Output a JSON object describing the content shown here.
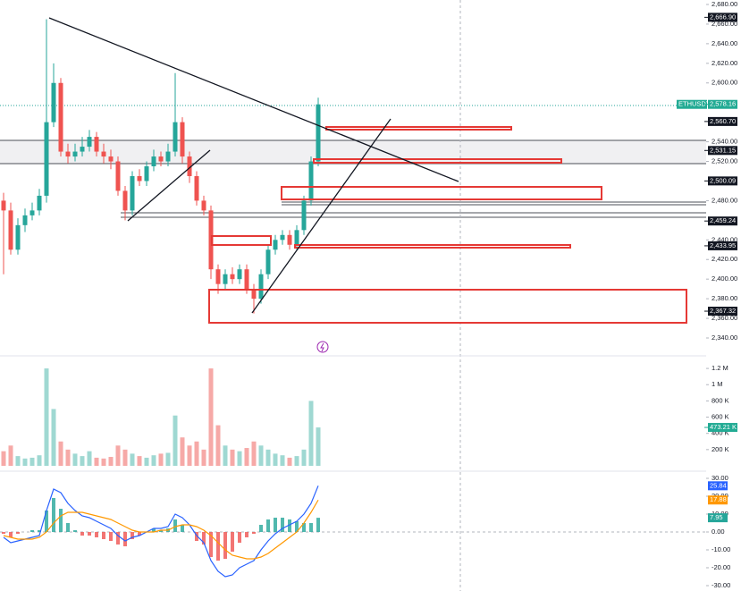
{
  "chart_data": [
    {
      "type": "candlestick",
      "symbol": "ETHUSDT.P",
      "up_color": "#26a69a",
      "down_color": "#ef5350",
      "open": [
        2480,
        2470,
        2430,
        2455,
        2465,
        2470,
        2485,
        2560,
        2600,
        2530,
        2525,
        2530,
        2535,
        2545,
        2530,
        2525,
        2520,
        2490,
        2470,
        2505,
        2500,
        2515,
        2525,
        2520,
        2530,
        2560,
        2525,
        2505,
        2480,
        2470,
        2410,
        2395,
        2405,
        2400,
        2410,
        2390,
        2380,
        2405,
        2430,
        2440,
        2445,
        2435,
        2450,
        2480,
        2520
      ],
      "high": [
        2488,
        2478,
        2462,
        2472,
        2478,
        2492,
        2665,
        2620,
        2605,
        2538,
        2538,
        2545,
        2552,
        2550,
        2538,
        2532,
        2525,
        2495,
        2510,
        2512,
        2520,
        2532,
        2530,
        2538,
        2610,
        2565,
        2530,
        2510,
        2485,
        2475,
        2415,
        2410,
        2412,
        2415,
        2415,
        2395,
        2410,
        2435,
        2445,
        2450,
        2450,
        2455,
        2485,
        2525,
        2585
      ],
      "low": [
        2405,
        2425,
        2425,
        2448,
        2460,
        2465,
        2478,
        2555,
        2525,
        2518,
        2520,
        2525,
        2530,
        2525,
        2518,
        2512,
        2485,
        2460,
        2465,
        2495,
        2495,
        2510,
        2515,
        2515,
        2525,
        2518,
        2498,
        2475,
        2465,
        2400,
        2385,
        2390,
        2395,
        2395,
        2385,
        2365,
        2375,
        2400,
        2425,
        2435,
        2430,
        2430,
        2445,
        2475,
        2515
      ],
      "close": [
        2470,
        2430,
        2455,
        2465,
        2470,
        2485,
        2560,
        2600,
        2530,
        2525,
        2530,
        2535,
        2545,
        2530,
        2525,
        2520,
        2490,
        2470,
        2505,
        2500,
        2515,
        2525,
        2520,
        2530,
        2560,
        2525,
        2505,
        2480,
        2470,
        2410,
        2395,
        2405,
        2400,
        2410,
        2390,
        2380,
        2405,
        2430,
        2440,
        2445,
        2435,
        2450,
        2480,
        2520,
        2578.16
      ],
      "ylim": [
        2340,
        2680
      ],
      "yticks": [
        {
          "value": 2680,
          "label": "2,680.00"
        },
        {
          "value": 2660,
          "label": "2,660.00"
        },
        {
          "value": 2640,
          "label": "2,640.00"
        },
        {
          "value": 2620,
          "label": "2,620.00"
        },
        {
          "value": 2600,
          "label": "2,600.00"
        },
        {
          "value": 2540,
          "label": "2,540.00"
        },
        {
          "value": 2520,
          "label": "2,520.00"
        },
        {
          "value": 2480,
          "label": "2,480.00"
        },
        {
          "value": 2440,
          "label": "2,440.00"
        },
        {
          "value": 2420,
          "label": "2,420.00"
        },
        {
          "value": 2400,
          "label": "2,400.00"
        },
        {
          "value": 2380,
          "label": "2,380.00"
        },
        {
          "value": 2360,
          "label": "2,360.00"
        },
        {
          "value": 2340,
          "label": "2,340.00"
        }
      ],
      "price_labels": [
        {
          "value": 2666.9,
          "label": "2,666.90",
          "color": "#131722"
        },
        {
          "value": 2578.16,
          "label": "2,578.16",
          "color": "#22ab94"
        },
        {
          "value": 2560.7,
          "label": "2,560.70",
          "color": "#131722"
        },
        {
          "value": 2531.15,
          "label": "2,531.15",
          "color": "#131722"
        },
        {
          "value": 2500.09,
          "label": "2,500.09",
          "color": "#131722"
        },
        {
          "value": 2459.24,
          "label": "2,459.24",
          "color": "#131722"
        },
        {
          "value": 2433.95,
          "label": "2,433.95",
          "color": "#131722"
        },
        {
          "value": 2367.32,
          "label": "2,367.32",
          "color": "#131722"
        }
      ]
    },
    {
      "type": "volume",
      "up_color": "#9fd8d2",
      "down_color": "#f6a9a7",
      "values": [
        180000,
        250000,
        120000,
        90000,
        100000,
        130000,
        1200000,
        700000,
        300000,
        200000,
        150000,
        120000,
        180000,
        100000,
        90000,
        110000,
        250000,
        200000,
        150000,
        120000,
        100000,
        130000,
        150000,
        160000,
        620000,
        350000,
        250000,
        300000,
        200000,
        1200000,
        500000,
        250000,
        200000,
        180000,
        220000,
        300000,
        250000,
        200000,
        150000,
        130000,
        100000,
        120000,
        200000,
        800000,
        473210
      ],
      "last_label": "473.21 K",
      "last_color": "#22ab94",
      "ylim": [
        0,
        1300000
      ],
      "yticks": [
        {
          "value": 1200000,
          "label": "1.2 M"
        },
        {
          "value": 1000000,
          "label": "1 M"
        },
        {
          "value": 800000,
          "label": "800 K"
        },
        {
          "value": 600000,
          "label": "600 K"
        },
        {
          "value": 400000,
          "label": "400 K"
        },
        {
          "value": 200000,
          "label": "200 K"
        }
      ]
    },
    {
      "type": "macd",
      "series": [
        {
          "color": "#2962ff",
          "values": [
            -3,
            -6,
            -5,
            -4,
            -3,
            -2,
            12,
            24,
            22,
            16,
            12,
            9,
            8,
            6,
            4,
            2,
            -2,
            -5,
            -3,
            -2,
            0,
            2,
            2,
            3,
            10,
            8,
            4,
            -2,
            -6,
            -16,
            -22,
            -25,
            -24,
            -20,
            -18,
            -16,
            -10,
            -5,
            -1,
            2,
            4,
            6,
            10,
            16,
            25.84
          ]
        },
        {
          "color": "#ff9800",
          "values": [
            -2,
            -3,
            -4,
            -4,
            -4,
            -3,
            0,
            5,
            9,
            11,
            11,
            11,
            10,
            9,
            8,
            7,
            5,
            3,
            1,
            0,
            0,
            0,
            1,
            1,
            3,
            4,
            4,
            3,
            1,
            -2,
            -6,
            -10,
            -13,
            -14,
            -15,
            -15,
            -14,
            -12,
            -9,
            -6,
            -3,
            0,
            5,
            11,
            17.88
          ]
        }
      ],
      "histogram": [
        -1,
        -3,
        -1,
        0,
        1,
        1,
        12,
        19,
        13,
        5,
        1,
        -2,
        -2,
        -3,
        -4,
        -5,
        -7,
        -8,
        -4,
        -2,
        0,
        2,
        1,
        2,
        7,
        4,
        0,
        -5,
        -7,
        -14,
        -16,
        -15,
        -11,
        -6,
        -3,
        -1,
        4,
        7,
        8,
        8,
        7,
        6,
        5,
        5,
        7.95
      ],
      "up_color": "#26a69a",
      "down_color": "#ef5350",
      "ylim": [
        -30,
        30
      ],
      "yticks": [
        {
          "value": 30,
          "label": "30.00"
        },
        {
          "value": 20,
          "label": "20.00"
        },
        {
          "value": 10,
          "label": "10.00"
        },
        {
          "value": 0,
          "label": "0.00"
        },
        {
          "value": -10,
          "label": "-10.00"
        },
        {
          "value": -20,
          "label": "-20.00"
        },
        {
          "value": -30,
          "label": "-30.00"
        }
      ]
    }
  ]
}
